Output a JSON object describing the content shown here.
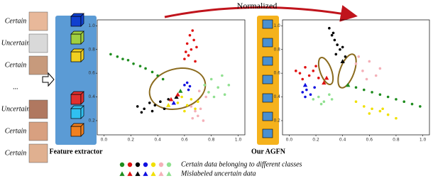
{
  "figure": {
    "arrow_label": "Normalized",
    "faces": [
      "Certain",
      "Uncertain",
      "Certain",
      "...",
      "Uncertain",
      "Certain",
      "Certain"
    ],
    "extractor_label": "Feature extractor",
    "agfn_label": "Our AGFN",
    "legend_certain": "Certain data belonging to different classes",
    "legend_mislabeled": "Mislabeled uncertain data"
  },
  "chart_data": [
    {
      "type": "scatter",
      "xlim": [
        -0.05,
        1.05
      ],
      "ylim": [
        0.08,
        1.05
      ],
      "xticks": [
        {
          "value": 0,
          "label": "0.0"
        },
        0.2,
        0.4,
        0.6,
        0.8,
        {
          "value": 1,
          "label": "1.0"
        }
      ],
      "yticks": [
        0.2,
        0.4,
        0.6,
        0.8,
        {
          "value": 1,
          "label": "1.0"
        }
      ],
      "series": [
        {
          "color": "#1e8c1e",
          "marker": "circle",
          "x": [
            0.05,
            0.1,
            0.14,
            0.18,
            0.22,
            0.27,
            0.31,
            0.36,
            0.4,
            0.44
          ],
          "y": [
            0.76,
            0.74,
            0.72,
            0.71,
            0.68,
            0.66,
            0.64,
            0.61,
            0.58,
            0.55
          ]
        },
        {
          "color": "#e01010",
          "marker": "circle",
          "x": [
            0.6,
            0.63,
            0.65,
            0.62,
            0.67,
            0.64,
            0.66,
            0.69,
            0.61,
            0.68
          ],
          "y": [
            0.72,
            0.75,
            0.8,
            0.85,
            0.88,
            0.92,
            0.96,
            0.82,
            0.78,
            0.7
          ]
        },
        {
          "color": "#000000",
          "marker": "circle",
          "x": [
            0.25,
            0.3,
            0.34,
            0.38,
            0.42,
            0.45,
            0.48,
            0.36,
            0.28
          ],
          "y": [
            0.32,
            0.3,
            0.35,
            0.33,
            0.36,
            0.3,
            0.38,
            0.28,
            0.27
          ]
        },
        {
          "color": "#1010e0",
          "marker": "circle",
          "x": [
            0.6,
            0.62,
            0.64,
            0.63
          ],
          "y": [
            0.5,
            0.52,
            0.49,
            0.46
          ]
        },
        {
          "color": "#f0e000",
          "marker": "circle",
          "x": [
            0.55,
            0.58,
            0.62,
            0.65,
            0.68,
            0.6,
            0.7
          ],
          "y": [
            0.35,
            0.4,
            0.33,
            0.38,
            0.3,
            0.28,
            0.36
          ]
        },
        {
          "color": "#f4b0b8",
          "marker": "circle",
          "x": [
            0.65,
            0.68,
            0.72,
            0.7,
            0.74,
            0.66,
            0.76,
            0.71
          ],
          "y": [
            0.32,
            0.28,
            0.3,
            0.24,
            0.2,
            0.22,
            0.4,
            0.45
          ]
        },
        {
          "color": "#90e090",
          "marker": "circle",
          "x": [
            0.75,
            0.8,
            0.85,
            0.9,
            0.78,
            0.88,
            0.82,
            0.93
          ],
          "y": [
            0.5,
            0.55,
            0.48,
            0.42,
            0.44,
            0.58,
            0.4,
            0.5
          ]
        },
        {
          "color": "#000000",
          "marker": "triangle",
          "x": [
            0.54
          ],
          "y": [
            0.4
          ]
        },
        {
          "color": "#e01010",
          "marker": "triangle",
          "x": [
            0.55,
            0.5
          ],
          "y": [
            0.42,
            0.38
          ]
        },
        {
          "color": "#1010e0",
          "marker": "triangle",
          "x": [
            0.52
          ],
          "y": [
            0.35
          ]
        },
        {
          "color": "#f0e000",
          "marker": "triangle",
          "x": [
            0.48
          ],
          "y": [
            0.33
          ]
        },
        {
          "color": "#1e8c1e",
          "marker": "triangle",
          "x": [
            0.57
          ],
          "y": [
            0.45
          ]
        }
      ]
    },
    {
      "type": "scatter",
      "xlim": [
        -0.05,
        1.05
      ],
      "ylim": [
        0.08,
        1.05
      ],
      "xticks": [
        {
          "value": 0,
          "label": "0.0"
        },
        0.2,
        0.4,
        0.6,
        0.8,
        {
          "value": 1,
          "label": "1.0"
        }
      ],
      "yticks": [
        0.2,
        0.4,
        0.6,
        0.8,
        {
          "value": 1,
          "label": "1.0"
        }
      ],
      "series": [
        {
          "color": "#000000",
          "marker": "circle",
          "x": [
            0.3,
            0.32,
            0.34,
            0.36,
            0.38,
            0.35,
            0.4,
            0.42,
            0.33
          ],
          "y": [
            0.98,
            0.92,
            0.88,
            0.84,
            0.8,
            0.76,
            0.82,
            0.74,
            0.94
          ]
        },
        {
          "color": "#e01010",
          "marker": "circle",
          "x": [
            0.05,
            0.08,
            0.12,
            0.15,
            0.18,
            0.22,
            0.1,
            0.2
          ],
          "y": [
            0.62,
            0.6,
            0.65,
            0.58,
            0.62,
            0.56,
            0.55,
            0.66
          ]
        },
        {
          "color": "#1010e0",
          "marker": "circle",
          "x": [
            0.1,
            0.13,
            0.16,
            0.19,
            0.12
          ],
          "y": [
            0.44,
            0.46,
            0.42,
            0.48,
            0.4
          ]
        },
        {
          "color": "#90e090",
          "marker": "circle",
          "x": [
            0.18,
            0.22,
            0.26,
            0.3,
            0.24,
            0.32
          ],
          "y": [
            0.38,
            0.4,
            0.36,
            0.42,
            0.34,
            0.38
          ]
        },
        {
          "color": "#f4b0b8",
          "marker": "circle",
          "x": [
            0.5,
            0.55,
            0.6,
            0.65,
            0.58,
            0.68,
            0.52
          ],
          "y": [
            0.68,
            0.62,
            0.7,
            0.58,
            0.55,
            0.64,
            0.74
          ]
        },
        {
          "color": "#1e8c1e",
          "marker": "circle",
          "x": [
            0.5,
            0.56,
            0.62,
            0.68,
            0.74,
            0.8,
            0.86,
            0.92,
            0.98
          ],
          "y": [
            0.48,
            0.46,
            0.44,
            0.42,
            0.4,
            0.38,
            0.36,
            0.34,
            0.32
          ]
        },
        {
          "color": "#f0e000",
          "marker": "circle",
          "x": [
            0.5,
            0.56,
            0.62,
            0.68,
            0.74,
            0.8,
            0.6,
            0.7
          ],
          "y": [
            0.36,
            0.32,
            0.3,
            0.28,
            0.25,
            0.22,
            0.26,
            0.3
          ]
        },
        {
          "color": "#e01010",
          "marker": "triangle",
          "x": [
            0.26,
            0.28
          ],
          "y": [
            0.52,
            0.56
          ]
        },
        {
          "color": "#1010e0",
          "marker": "triangle",
          "x": [
            0.12
          ],
          "y": [
            0.5
          ]
        },
        {
          "color": "#000000",
          "marker": "triangle",
          "x": [
            0.4
          ],
          "y": [
            0.7
          ]
        },
        {
          "color": "#1e8c1e",
          "marker": "triangle",
          "x": [
            0.44
          ],
          "y": [
            0.5
          ]
        }
      ]
    }
  ]
}
